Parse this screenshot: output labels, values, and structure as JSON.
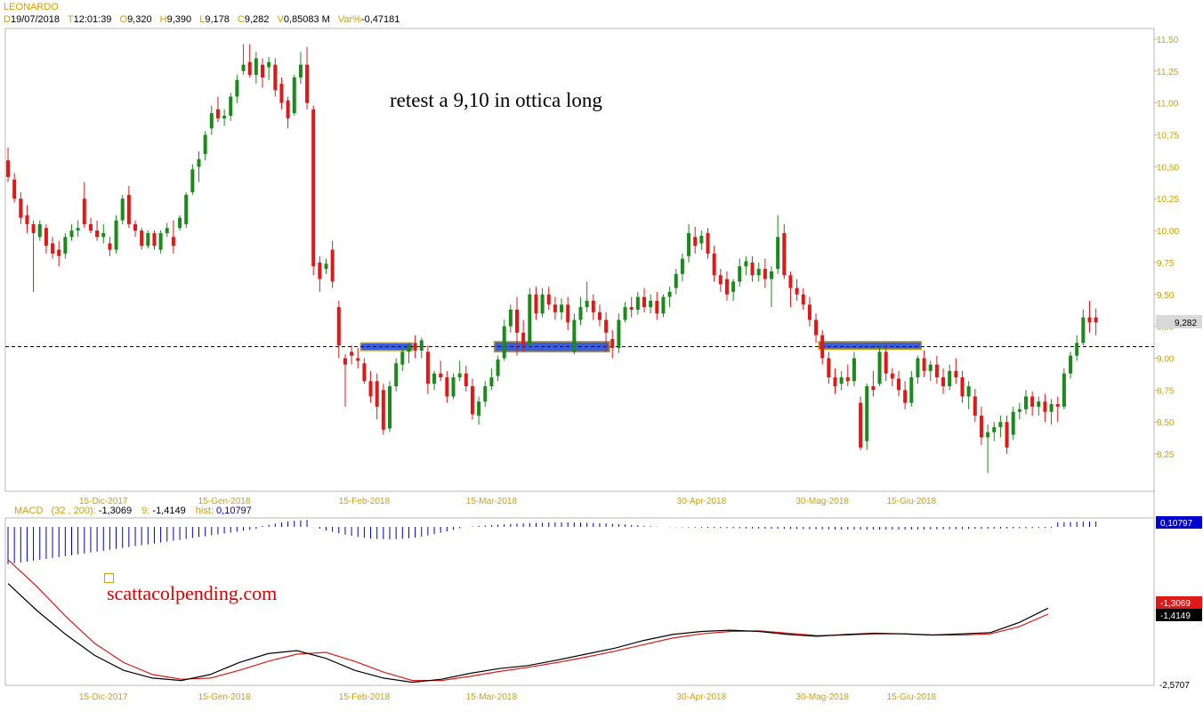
{
  "instrument": "LEONARDO",
  "ohlc_bar": [
    {
      "k": "D",
      "v": "19/07/2018"
    },
    {
      "k": "T",
      "v": "12:01:39"
    },
    {
      "k": "O",
      "v": "9,320"
    },
    {
      "k": "H",
      "v": "9,390"
    },
    {
      "k": "L",
      "v": "9,178"
    },
    {
      "k": "C",
      "v": "9,282"
    },
    {
      "k": "V",
      "v": "0,85083 M"
    },
    {
      "k": "Var%",
      "v": "-0,47181"
    }
  ],
  "annotation": "retest a 9,10 in ottica long",
  "watermark": "scattacolpending.com",
  "colors": {
    "up": "#1a8a1a",
    "down": "#e01818",
    "level_line": "#000000",
    "zone_fill": "#3a5fd8",
    "zone_border": "#d4a000",
    "axis_text": "#d4a000",
    "macd_line": "#000000",
    "signal_line": "#e01818",
    "hist": "#0000c0"
  },
  "chart_data": [
    {
      "type": "candlestick",
      "title": "LEONARDO",
      "y_range": [
        8.0,
        11.55
      ],
      "y_ticks": [
        "11,50",
        "11,25",
        "11,00",
        "10,75",
        "10,50",
        "10,25",
        "10,00",
        "9,75",
        "9,50",
        "9,25",
        "9,00",
        "8,75",
        "8,50",
        "8,25"
      ],
      "x_ticks": [
        "15-Dic-2017",
        "15-Gen-2018",
        "15-Feb-2018",
        "15-Mar-2018",
        "30-Apr-2018",
        "30-Mag-2018",
        "15-Giu-2018"
      ],
      "last_price_label": "9,282",
      "horizontal_level": 9.09,
      "support_zones": [
        {
          "from_index": 56,
          "to_index": 63,
          "low": 9.06,
          "high": 9.12
        },
        {
          "from_index": 77,
          "to_index": 94,
          "low": 9.05,
          "high": 9.13
        },
        {
          "from_index": 128,
          "to_index": 143,
          "low": 9.07,
          "high": 9.13
        }
      ],
      "candles": [
        [
          10.55,
          10.65,
          10.38,
          10.42
        ],
        [
          10.4,
          10.45,
          10.22,
          10.25
        ],
        [
          10.25,
          10.3,
          10.05,
          10.1
        ],
        [
          10.12,
          10.2,
          9.98,
          10.05
        ],
        [
          10.05,
          10.08,
          9.52,
          9.98
        ],
        [
          9.95,
          10.08,
          9.92,
          10.05
        ],
        [
          10.02,
          10.05,
          9.82,
          9.88
        ],
        [
          9.9,
          9.95,
          9.78,
          9.82
        ],
        [
          9.85,
          9.92,
          9.72,
          9.8
        ],
        [
          9.82,
          9.98,
          9.78,
          9.95
        ],
        [
          9.95,
          10.05,
          9.92,
          10.0
        ],
        [
          10.0,
          10.08,
          9.95,
          10.02
        ],
        [
          10.25,
          10.38,
          10.02,
          10.05
        ],
        [
          10.05,
          10.1,
          9.98,
          10.0
        ],
        [
          10.0,
          10.08,
          9.92,
          9.95
        ],
        [
          9.95,
          10.05,
          9.9,
          9.98
        ],
        [
          9.9,
          9.95,
          9.8,
          9.85
        ],
        [
          9.85,
          10.12,
          9.82,
          10.08
        ],
        [
          10.08,
          10.28,
          10.05,
          10.25
        ],
        [
          10.28,
          10.35,
          10.02,
          10.05
        ],
        [
          10.05,
          10.08,
          9.95,
          10.0
        ],
        [
          10.0,
          10.02,
          9.85,
          9.88
        ],
        [
          9.88,
          10.0,
          9.86,
          9.98
        ],
        [
          9.98,
          10.0,
          9.85,
          9.88
        ],
        [
          9.85,
          10.0,
          9.82,
          9.98
        ],
        [
          9.98,
          10.06,
          9.95,
          10.02
        ],
        [
          9.95,
          10.08,
          9.82,
          9.88
        ],
        [
          10.02,
          10.12,
          10.0,
          10.1
        ],
        [
          10.05,
          10.3,
          10.02,
          10.28
        ],
        [
          10.3,
          10.52,
          10.28,
          10.48
        ],
        [
          10.5,
          10.62,
          10.38,
          10.56
        ],
        [
          10.6,
          10.78,
          10.55,
          10.75
        ],
        [
          10.8,
          10.98,
          10.75,
          10.92
        ],
        [
          10.95,
          11.05,
          10.85,
          10.88
        ],
        [
          10.88,
          10.95,
          10.82,
          10.9
        ],
        [
          10.9,
          11.08,
          10.86,
          11.05
        ],
        [
          11.05,
          11.22,
          11.0,
          11.18
        ],
        [
          11.25,
          11.46,
          11.22,
          11.3
        ],
        [
          11.32,
          11.46,
          11.2,
          11.22
        ],
        [
          11.22,
          11.4,
          11.15,
          11.35
        ],
        [
          11.3,
          11.35,
          11.12,
          11.2
        ],
        [
          11.28,
          11.36,
          11.18,
          11.32
        ],
        [
          11.3,
          11.35,
          11.05,
          11.1
        ],
        [
          11.15,
          11.2,
          10.95,
          11.0
        ],
        [
          11.02,
          11.05,
          10.8,
          10.88
        ],
        [
          10.92,
          11.22,
          10.9,
          11.2
        ],
        [
          11.2,
          11.4,
          11.15,
          11.3
        ],
        [
          11.3,
          11.44,
          10.95,
          11.0
        ],
        [
          10.95,
          10.98,
          9.65,
          9.72
        ],
        [
          9.75,
          9.8,
          9.52,
          9.62
        ],
        [
          9.7,
          9.78,
          9.66,
          9.74
        ],
        [
          9.85,
          9.92,
          9.55,
          9.6
        ],
        [
          9.4,
          9.45,
          9.0,
          9.1
        ],
        [
          9.0,
          9.03,
          8.62,
          8.95
        ],
        [
          9.05,
          9.1,
          8.95,
          9.02
        ],
        [
          9.0,
          9.08,
          8.92,
          8.98
        ],
        [
          8.96,
          9.0,
          8.8,
          8.82
        ],
        [
          8.82,
          8.9,
          8.65,
          8.7
        ],
        [
          8.82,
          8.88,
          8.52,
          8.62
        ],
        [
          8.75,
          8.8,
          8.4,
          8.44
        ],
        [
          8.45,
          8.82,
          8.42,
          8.78
        ],
        [
          8.78,
          9.0,
          8.74,
          8.96
        ],
        [
          8.95,
          9.08,
          8.9,
          9.05
        ],
        [
          9.05,
          9.12,
          8.96,
          9.1
        ],
        [
          9.12,
          9.18,
          9.0,
          9.06
        ],
        [
          9.06,
          9.16,
          9.0,
          9.14
        ],
        [
          9.05,
          9.1,
          8.72,
          8.8
        ],
        [
          8.8,
          8.9,
          8.75,
          8.88
        ],
        [
          8.88,
          8.98,
          8.82,
          8.85
        ],
        [
          8.85,
          8.9,
          8.65,
          8.7
        ],
        [
          8.7,
          8.88,
          8.68,
          8.85
        ],
        [
          8.85,
          8.98,
          8.82,
          8.88
        ],
        [
          8.88,
          8.94,
          8.74,
          8.78
        ],
        [
          8.78,
          8.84,
          8.52,
          8.56
        ],
        [
          8.55,
          8.7,
          8.48,
          8.66
        ],
        [
          8.66,
          8.82,
          8.62,
          8.78
        ],
        [
          8.78,
          8.92,
          8.75,
          8.85
        ],
        [
          8.86,
          9.02,
          8.82,
          8.99
        ],
        [
          9.0,
          9.3,
          8.98,
          9.25
        ],
        [
          9.25,
          9.42,
          9.2,
          9.38
        ],
        [
          9.38,
          9.48,
          9.02,
          9.2
        ],
        [
          9.2,
          9.3,
          9.05,
          9.1
        ],
        [
          9.1,
          9.55,
          9.08,
          9.5
        ],
        [
          9.5,
          9.56,
          9.3,
          9.35
        ],
        [
          9.35,
          9.55,
          9.32,
          9.5
        ],
        [
          9.5,
          9.56,
          9.38,
          9.42
        ],
        [
          9.42,
          9.48,
          9.3,
          9.36
        ],
        [
          9.36,
          9.47,
          9.3,
          9.42
        ],
        [
          9.42,
          9.48,
          9.22,
          9.28
        ],
        [
          9.05,
          9.35,
          9.03,
          9.3
        ],
        [
          9.3,
          9.48,
          9.26,
          9.4
        ],
        [
          9.4,
          9.6,
          9.36,
          9.45
        ],
        [
          9.45,
          9.5,
          9.3,
          9.36
        ],
        [
          9.36,
          9.42,
          9.25,
          9.3
        ],
        [
          9.3,
          9.36,
          9.05,
          9.2
        ],
        [
          9.15,
          9.22,
          9.0,
          9.08
        ],
        [
          9.08,
          9.35,
          9.04,
          9.3
        ],
        [
          9.3,
          9.44,
          9.28,
          9.4
        ],
        [
          9.4,
          9.48,
          9.32,
          9.38
        ],
        [
          9.38,
          9.52,
          9.34,
          9.48
        ],
        [
          9.48,
          9.55,
          9.36,
          9.4
        ],
        [
          9.4,
          9.5,
          9.35,
          9.45
        ],
        [
          9.45,
          9.52,
          9.3,
          9.35
        ],
        [
          9.35,
          9.5,
          9.32,
          9.48
        ],
        [
          9.48,
          9.56,
          9.4,
          9.52
        ],
        [
          9.55,
          9.7,
          9.5,
          9.66
        ],
        [
          9.66,
          9.82,
          9.6,
          9.78
        ],
        [
          9.8,
          10.05,
          9.75,
          9.98
        ],
        [
          9.95,
          10.03,
          9.82,
          9.88
        ],
        [
          9.9,
          10.0,
          9.85,
          9.96
        ],
        [
          9.98,
          10.02,
          9.78,
          9.82
        ],
        [
          9.82,
          9.88,
          9.6,
          9.65
        ],
        [
          9.65,
          9.7,
          9.52,
          9.58
        ],
        [
          9.62,
          9.68,
          9.45,
          9.5
        ],
        [
          9.52,
          9.62,
          9.45,
          9.6
        ],
        [
          9.6,
          9.78,
          9.56,
          9.72
        ],
        [
          9.72,
          9.8,
          9.65,
          9.76
        ],
        [
          9.75,
          9.8,
          9.6,
          9.65
        ],
        [
          9.65,
          9.75,
          9.6,
          9.7
        ],
        [
          9.7,
          9.78,
          9.55,
          9.62
        ],
        [
          9.62,
          9.72,
          9.4,
          9.68
        ],
        [
          9.7,
          10.12,
          9.66,
          9.95
        ],
        [
          9.98,
          10.05,
          9.62,
          9.65
        ],
        [
          9.65,
          9.68,
          9.4,
          9.55
        ],
        [
          9.55,
          9.62,
          9.45,
          9.5
        ],
        [
          9.5,
          9.55,
          9.38,
          9.42
        ],
        [
          9.42,
          9.48,
          9.25,
          9.3
        ],
        [
          9.3,
          9.35,
          9.12,
          9.18
        ],
        [
          9.18,
          9.22,
          8.95,
          9.0
        ],
        [
          9.0,
          9.05,
          8.8,
          8.85
        ],
        [
          8.85,
          8.92,
          8.72,
          8.78
        ],
        [
          8.8,
          8.9,
          8.75,
          8.85
        ],
        [
          8.85,
          8.95,
          8.78,
          8.82
        ],
        [
          8.82,
          9.05,
          8.78,
          9.0
        ],
        [
          8.65,
          8.7,
          8.28,
          8.3
        ],
        [
          8.35,
          8.8,
          8.28,
          8.78
        ],
        [
          8.78,
          8.9,
          8.7,
          8.75
        ],
        [
          8.8,
          9.1,
          8.78,
          9.05
        ],
        [
          9.05,
          9.12,
          8.82,
          8.88
        ],
        [
          8.88,
          8.92,
          8.78,
          8.84
        ],
        [
          8.84,
          8.9,
          8.7,
          8.75
        ],
        [
          8.75,
          8.82,
          8.6,
          8.65
        ],
        [
          8.65,
          8.9,
          8.62,
          8.85
        ],
        [
          8.85,
          9.02,
          8.8,
          9.0
        ],
        [
          9.0,
          9.06,
          8.85,
          8.9
        ],
        [
          8.9,
          8.98,
          8.82,
          8.95
        ],
        [
          8.95,
          9.02,
          8.8,
          8.85
        ],
        [
          8.85,
          8.92,
          8.72,
          8.78
        ],
        [
          8.78,
          8.95,
          8.75,
          8.9
        ],
        [
          8.9,
          9.0,
          8.8,
          8.85
        ],
        [
          8.85,
          8.9,
          8.65,
          8.7
        ],
        [
          8.7,
          8.82,
          8.6,
          8.78
        ],
        [
          8.7,
          8.76,
          8.5,
          8.55
        ],
        [
          8.55,
          8.62,
          8.32,
          8.38
        ],
        [
          8.38,
          8.48,
          8.1,
          8.42
        ],
        [
          8.42,
          8.5,
          8.35,
          8.46
        ],
        [
          8.46,
          8.55,
          8.38,
          8.5
        ],
        [
          8.5,
          8.55,
          8.25,
          8.3
        ],
        [
          8.4,
          8.62,
          8.36,
          8.58
        ],
        [
          8.58,
          8.65,
          8.52,
          8.6
        ],
        [
          8.6,
          8.75,
          8.56,
          8.7
        ],
        [
          8.7,
          8.74,
          8.55,
          8.62
        ],
        [
          8.62,
          8.7,
          8.55,
          8.66
        ],
        [
          8.66,
          8.72,
          8.5,
          8.58
        ],
        [
          8.58,
          8.68,
          8.48,
          8.64
        ],
        [
          8.64,
          8.7,
          8.5,
          8.62
        ],
        [
          8.62,
          8.92,
          8.6,
          8.88
        ],
        [
          8.88,
          9.05,
          8.84,
          9.02
        ],
        [
          9.02,
          9.18,
          8.98,
          9.12
        ],
        [
          9.12,
          9.38,
          9.1,
          9.32
        ],
        [
          9.32,
          9.45,
          9.2,
          9.28
        ],
        [
          9.32,
          9.39,
          9.18,
          9.28
        ]
      ]
    },
    {
      "type": "line",
      "title": "MACD",
      "params": "(32 , 200)",
      "macd_value": "-1,3069",
      "signal_label": "9",
      "signal_value": "-1,4149",
      "hist_label": "hist",
      "hist_value": "0,10797",
      "y_range": [
        -2.5707,
        0.10797
      ],
      "y_tick": "-2,5707",
      "right_labels": [
        "0,10797",
        "-1,3069",
        "-1,4149"
      ],
      "x_ticks": [
        "15-Dic-2017",
        "15-Gen-2018",
        "15-Feb-2018",
        "15-Mar-2018",
        "30-Apr-2018",
        "30-Mag-2018",
        "15-Giu-2018"
      ],
      "macd": [
        -0.9,
        -1.35,
        -1.75,
        -2.1,
        -2.35,
        -2.48,
        -2.52,
        -2.42,
        -2.22,
        -2.07,
        -2.02,
        -2.15,
        -2.35,
        -2.48,
        -2.55,
        -2.5,
        -2.4,
        -2.32,
        -2.27,
        -2.18,
        -2.08,
        -1.98,
        -1.85,
        -1.75,
        -1.7,
        -1.68,
        -1.7,
        -1.75,
        -1.78,
        -1.75,
        -1.73,
        -1.74,
        -1.76,
        -1.74,
        -1.72,
        -1.55,
        -1.31
      ],
      "signal": [
        -0.5,
        -0.95,
        -1.45,
        -1.9,
        -2.22,
        -2.42,
        -2.5,
        -2.48,
        -2.35,
        -2.2,
        -2.08,
        -2.05,
        -2.2,
        -2.38,
        -2.52,
        -2.52,
        -2.45,
        -2.37,
        -2.3,
        -2.22,
        -2.13,
        -2.03,
        -1.92,
        -1.81,
        -1.74,
        -1.7,
        -1.69,
        -1.73,
        -1.77,
        -1.76,
        -1.74,
        -1.74,
        -1.76,
        -1.76,
        -1.74,
        -1.62,
        -1.41
      ]
    }
  ]
}
